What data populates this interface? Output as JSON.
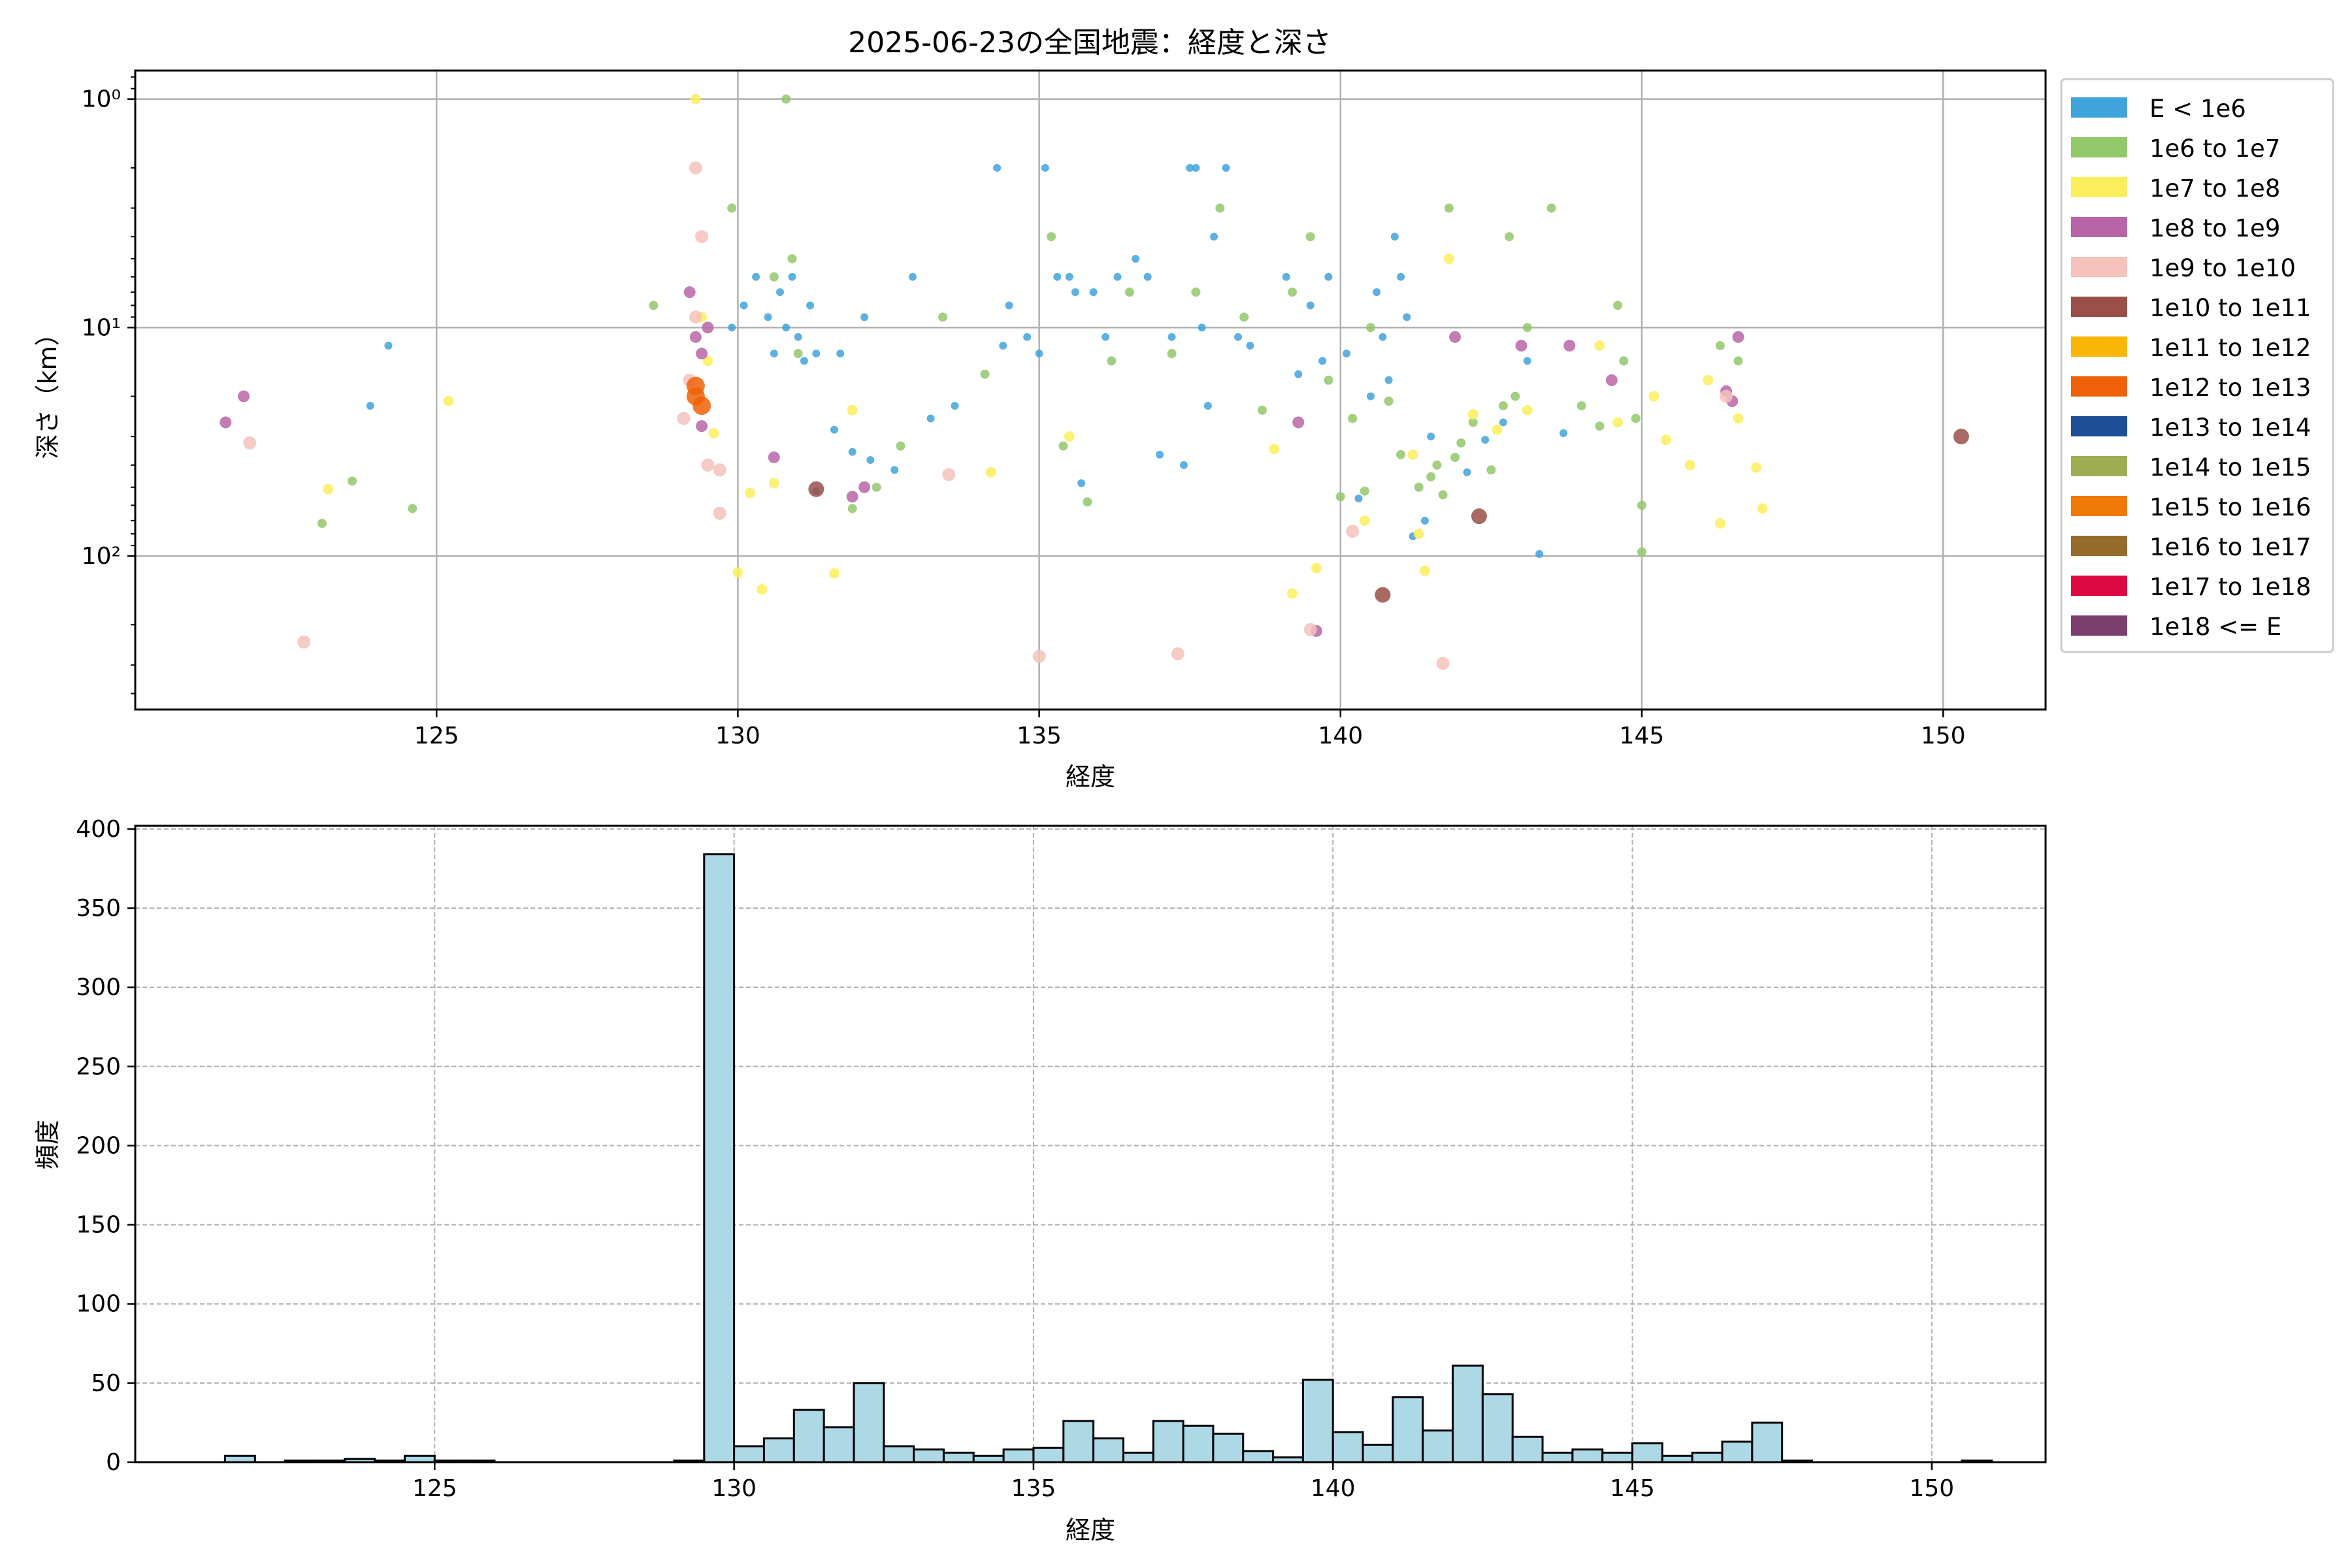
{
  "chart_data": [
    {
      "type": "scatter",
      "title": "2025-06-23の全国地震：経度と深さ",
      "xlabel": "経度",
      "ylabel": "深さ（km）",
      "xlim": [
        120.0,
        151.7
      ],
      "ylim": [
        470,
        0.75
      ],
      "yscale": "log",
      "y_inverted": true,
      "xticks": [
        125,
        130,
        135,
        140,
        145,
        150
      ],
      "xtick_labels": [
        "125",
        "130",
        "135",
        "140",
        "145",
        "150"
      ],
      "yticks": [
        1,
        10,
        100
      ],
      "ytick_labels": [
        "10⁰",
        "10¹",
        "10²"
      ],
      "grid": true,
      "legend_position": "outside-right",
      "legend": [
        {
          "label": "E < 1e6",
          "color": "#3fa3dc"
        },
        {
          "label": "1e6 to 1e7",
          "color": "#92c76a"
        },
        {
          "label": "1e7 to 1e8",
          "color": "#fbee5c"
        },
        {
          "label": "1e8 to 1e9",
          "color": "#b865a7"
        },
        {
          "label": "1e9 to 1e10",
          "color": "#f5c2bc"
        },
        {
          "label": "1e10 to 1e11",
          "color": "#9a5049"
        },
        {
          "label": "1e11 to 1e12",
          "color": "#f8b707"
        },
        {
          "label": "1e12 to 1e13",
          "color": "#ef6108"
        },
        {
          "label": "1e13 to 1e14",
          "color": "#1e4f96"
        },
        {
          "label": "1e14 to 1e15",
          "color": "#9ead52"
        },
        {
          "label": "1e15 to 1e16",
          "color": "#ef7a08"
        },
        {
          "label": "1e16 to 1e17",
          "color": "#966c2c"
        },
        {
          "label": "1e17 to 1e18",
          "color": "#dc0a40"
        },
        {
          "label": "1e18 <= E",
          "color": "#7a3f6e"
        }
      ],
      "series": [
        {
          "name": "E < 1e6",
          "points": [
            [
              124.2,
              12
            ],
            [
              123.9,
              22
            ],
            [
              129.9,
              10
            ],
            [
              130.1,
              8
            ],
            [
              130.3,
              6
            ],
            [
              130.5,
              9
            ],
            [
              130.6,
              13
            ],
            [
              130.7,
              7
            ],
            [
              130.8,
              10
            ],
            [
              130.9,
              6
            ],
            [
              131.0,
              11
            ],
            [
              131.1,
              14
            ],
            [
              131.2,
              8
            ],
            [
              131.3,
              13
            ],
            [
              131.3,
              52
            ],
            [
              131.6,
              28
            ],
            [
              131.7,
              13
            ],
            [
              131.9,
              35
            ],
            [
              132.1,
              9
            ],
            [
              132.2,
              38
            ],
            [
              132.6,
              42
            ],
            [
              132.9,
              6
            ],
            [
              133.2,
              25
            ],
            [
              133.6,
              22
            ],
            [
              134.3,
              2
            ],
            [
              134.4,
              12
            ],
            [
              134.5,
              8
            ],
            [
              134.8,
              11
            ],
            [
              135.0,
              13
            ],
            [
              135.1,
              2
            ],
            [
              135.3,
              6
            ],
            [
              135.5,
              6
            ],
            [
              135.6,
              7
            ],
            [
              135.7,
              48
            ],
            [
              135.9,
              7
            ],
            [
              136.1,
              11
            ],
            [
              136.3,
              6
            ],
            [
              136.6,
              5
            ],
            [
              136.8,
              6
            ],
            [
              137.0,
              36
            ],
            [
              137.2,
              11
            ],
            [
              137.4,
              40
            ],
            [
              137.5,
              2
            ],
            [
              137.6,
              2
            ],
            [
              137.7,
              10
            ],
            [
              137.8,
              22
            ],
            [
              137.9,
              4
            ],
            [
              138.1,
              2
            ],
            [
              138.3,
              11
            ],
            [
              138.5,
              12
            ],
            [
              139.1,
              6
            ],
            [
              139.3,
              16
            ],
            [
              139.5,
              8
            ],
            [
              139.7,
              14
            ],
            [
              139.8,
              6
            ],
            [
              140.1,
              13
            ],
            [
              140.3,
              56
            ],
            [
              140.5,
              20
            ],
            [
              140.6,
              7
            ],
            [
              140.7,
              11
            ],
            [
              140.8,
              17
            ],
            [
              140.9,
              4
            ],
            [
              141.0,
              6
            ],
            [
              141.1,
              9
            ],
            [
              141.2,
              82
            ],
            [
              141.4,
              70
            ],
            [
              141.5,
              30
            ],
            [
              142.1,
              43
            ],
            [
              142.4,
              31
            ],
            [
              142.7,
              26
            ],
            [
              143.1,
              14
            ],
            [
              143.3,
              98
            ],
            [
              143.7,
              29
            ]
          ]
        },
        {
          "name": "1e6 to 1e7",
          "points": [
            [
              123.6,
              47
            ],
            [
              123.1,
              72
            ],
            [
              124.6,
              62
            ],
            [
              128.6,
              8
            ],
            [
              129.9,
              3
            ],
            [
              130.6,
              6
            ],
            [
              130.8,
              1
            ],
            [
              130.9,
              5
            ],
            [
              131.0,
              13
            ],
            [
              131.9,
              62
            ],
            [
              132.3,
              50
            ],
            [
              132.7,
              33
            ],
            [
              133.4,
              9
            ],
            [
              134.1,
              16
            ],
            [
              135.2,
              4
            ],
            [
              135.4,
              33
            ],
            [
              135.8,
              58
            ],
            [
              136.2,
              14
            ],
            [
              136.5,
              7
            ],
            [
              137.2,
              13
            ],
            [
              137.6,
              7
            ],
            [
              138.0,
              3
            ],
            [
              138.4,
              9
            ],
            [
              138.7,
              23
            ],
            [
              139.2,
              7
            ],
            [
              139.5,
              4
            ],
            [
              139.8,
              17
            ],
            [
              140.0,
              55
            ],
            [
              140.2,
              25
            ],
            [
              140.4,
              52
            ],
            [
              140.5,
              10
            ],
            [
              140.8,
              21
            ],
            [
              141.0,
              36
            ],
            [
              141.3,
              50
            ],
            [
              141.5,
              45
            ],
            [
              141.6,
              40
            ],
            [
              141.7,
              54
            ],
            [
              141.8,
              3
            ],
            [
              141.9,
              37
            ],
            [
              142.0,
              32
            ],
            [
              142.2,
              26
            ],
            [
              142.5,
              42
            ],
            [
              142.7,
              22
            ],
            [
              142.8,
              4
            ],
            [
              142.9,
              20
            ],
            [
              143.1,
              10
            ],
            [
              143.5,
              3
            ],
            [
              144.0,
              22
            ],
            [
              144.3,
              27
            ],
            [
              144.6,
              8
            ],
            [
              144.7,
              14
            ],
            [
              144.9,
              25
            ],
            [
              145.0,
              60
            ],
            [
              145.0,
              96
            ],
            [
              146.3,
              12
            ],
            [
              146.6,
              14
            ]
          ]
        },
        {
          "name": "1e7 to 1e8",
          "points": [
            [
              125.2,
              21
            ],
            [
              123.2,
              51
            ],
            [
              129.3,
              1
            ],
            [
              129.4,
              9
            ],
            [
              129.5,
              14
            ],
            [
              129.6,
              29
            ],
            [
              130.0,
              118
            ],
            [
              130.2,
              53
            ],
            [
              130.4,
              140
            ],
            [
              130.6,
              48
            ],
            [
              131.6,
              119
            ],
            [
              131.9,
              23
            ],
            [
              134.2,
              43
            ],
            [
              135.5,
              30
            ],
            [
              138.9,
              34
            ],
            [
              139.2,
              146
            ],
            [
              139.6,
              113
            ],
            [
              140.4,
              70
            ],
            [
              141.2,
              36
            ],
            [
              141.3,
              80
            ],
            [
              141.4,
              116
            ],
            [
              141.8,
              5
            ],
            [
              142.2,
              24
            ],
            [
              142.6,
              28
            ],
            [
              143.1,
              23
            ],
            [
              144.3,
              12
            ],
            [
              144.6,
              26
            ],
            [
              145.2,
              20
            ],
            [
              145.4,
              31
            ],
            [
              145.8,
              40
            ],
            [
              146.1,
              17
            ],
            [
              146.3,
              72
            ],
            [
              146.6,
              25
            ],
            [
              146.9,
              41
            ],
            [
              147.0,
              62
            ]
          ]
        },
        {
          "name": "1e8 to 1e9",
          "points": [
            [
              121.8,
              20
            ],
            [
              121.5,
              26
            ],
            [
              129.2,
              7
            ],
            [
              129.3,
              11
            ],
            [
              129.4,
              13
            ],
            [
              129.5,
              10
            ],
            [
              129.4,
              27
            ],
            [
              130.6,
              37
            ],
            [
              131.9,
              55
            ],
            [
              132.1,
              50
            ],
            [
              139.3,
              26
            ],
            [
              139.6,
              213
            ],
            [
              141.9,
              11
            ],
            [
              143.0,
              12
            ],
            [
              143.8,
              12
            ],
            [
              144.5,
              17
            ],
            [
              146.6,
              11
            ],
            [
              146.5,
              21
            ],
            [
              146.4,
              19
            ]
          ]
        },
        {
          "name": "1e9 to 1e10",
          "points": [
            [
              121.9,
              32
            ],
            [
              122.8,
              238
            ],
            [
              129.3,
              2
            ],
            [
              129.4,
              4
            ],
            [
              129.3,
              9
            ],
            [
              129.2,
              17
            ],
            [
              129.1,
              25
            ],
            [
              129.5,
              40
            ],
            [
              129.7,
              42
            ],
            [
              129.7,
              65
            ],
            [
              133.5,
              44
            ],
            [
              135.0,
              275
            ],
            [
              137.3,
              268
            ],
            [
              139.5,
              210
            ],
            [
              140.2,
              78
            ],
            [
              141.7,
              295
            ],
            [
              146.4,
              20
            ]
          ]
        },
        {
          "name": "1e10 to 1e11",
          "points": [
            [
              131.3,
              51
            ],
            [
              140.7,
              148
            ],
            [
              142.3,
              67
            ],
            [
              150.3,
              30
            ]
          ]
        },
        {
          "name": "1e12 to 1e13",
          "points": [
            [
              129.3,
              20
            ],
            [
              129.4,
              22
            ],
            [
              129.3,
              18
            ]
          ]
        }
      ]
    },
    {
      "type": "bar",
      "title": "",
      "xlabel": "経度",
      "ylabel": "頻度",
      "xlim": [
        120.0,
        151.9
      ],
      "ylim": [
        0,
        402
      ],
      "xticks": [
        125,
        130,
        135,
        140,
        145,
        150
      ],
      "xtick_labels": [
        "125",
        "130",
        "135",
        "140",
        "145",
        "150"
      ],
      "yticks": [
        0,
        50,
        100,
        150,
        200,
        250,
        300,
        350,
        400
      ],
      "ytick_labels": [
        "0",
        "50",
        "100",
        "150",
        "200",
        "250",
        "300",
        "350",
        "400"
      ],
      "grid": true,
      "bin_edges_start": 121.5,
      "bin_width": 0.5,
      "bin_color": "#add8e6",
      "values": [
        4,
        0,
        1,
        1,
        2,
        1,
        4,
        1,
        1,
        0,
        0,
        0,
        0,
        0,
        0,
        1,
        384,
        10,
        15,
        33,
        22,
        50,
        10,
        8,
        6,
        4,
        8,
        9,
        26,
        15,
        6,
        26,
        23,
        18,
        7,
        3,
        52,
        19,
        11,
        41,
        20,
        61,
        43,
        16,
        6,
        8,
        6,
        12,
        4,
        6,
        13,
        25,
        1,
        0,
        0,
        0,
        0,
        0,
        1
      ]
    }
  ]
}
